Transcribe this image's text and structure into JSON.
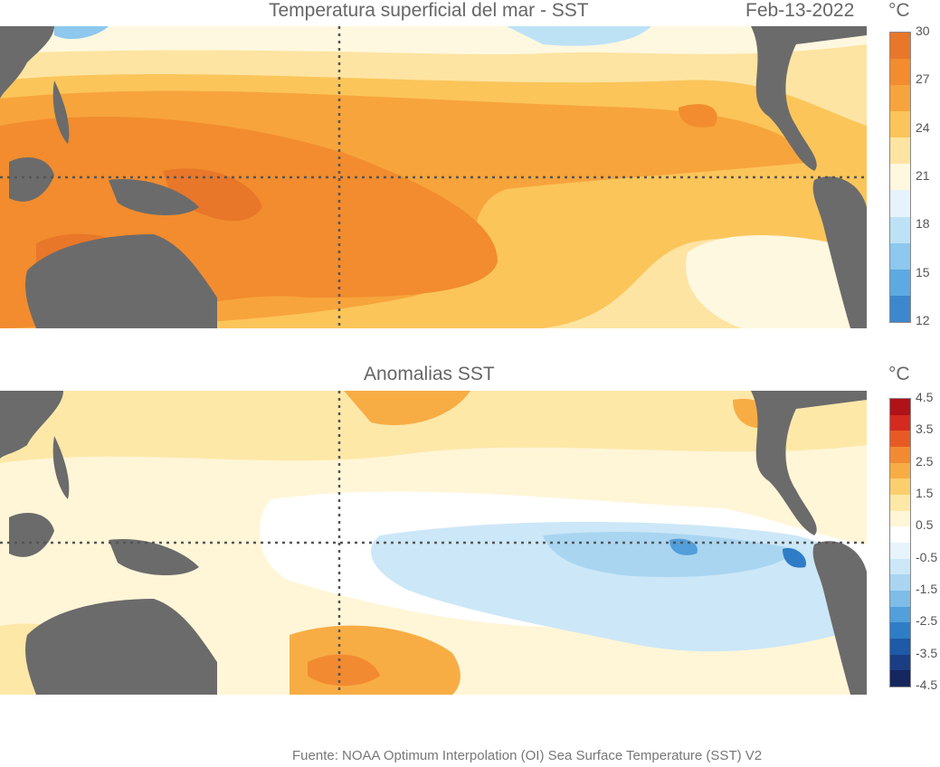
{
  "sst_panel": {
    "title": "Temperatura superficial del mar - SST",
    "date": "Feb-13-2022",
    "unit": "°C",
    "colorbar": {
      "ticks": [
        "30",
        "27",
        "24",
        "21",
        "18",
        "15",
        "12"
      ],
      "colors": [
        "#e8772a",
        "#f28c2e",
        "#f7a43c",
        "#fbc55a",
        "#fde4a2",
        "#fff8e0",
        "#e6f3fb",
        "#bde2f6",
        "#8ec8ee",
        "#5da9e1",
        "#3d87cc"
      ]
    }
  },
  "anomaly_panel": {
    "title": "Anomalias SST",
    "unit": "°C",
    "colorbar": {
      "ticks": [
        "4.5",
        "3.5",
        "2.5",
        "1.5",
        "0.5",
        "-0.5",
        "-1.5",
        "-2.5",
        "-3.5",
        "-4.5"
      ],
      "colors": [
        "#b01218",
        "#d42a20",
        "#e85a24",
        "#f28a32",
        "#f7ad44",
        "#fbcf6e",
        "#fde8a8",
        "#fff6d8",
        "#ffffff",
        "#e8f4fb",
        "#cce7f7",
        "#a9d5f1",
        "#7fbde8",
        "#529fdb",
        "#2f7dc7",
        "#1e5aa6",
        "#1b3d84",
        "#15275e"
      ]
    }
  },
  "source": "Fuente: NOAA Optimum Interpolation (OI) Sea Surface Temperature (SST) V2"
}
